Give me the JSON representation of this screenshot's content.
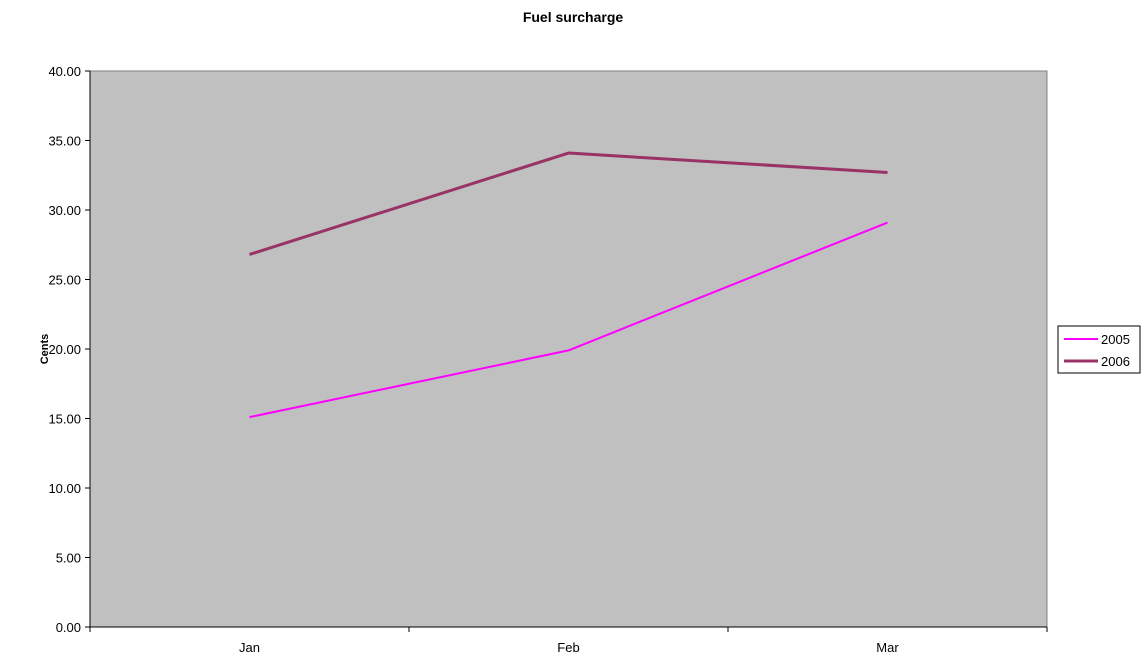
{
  "chart_data": {
    "type": "line",
    "title": "Fuel surcharge",
    "xlabel": "",
    "ylabel": "Cents",
    "categories": [
      "Jan",
      "Feb",
      "Mar"
    ],
    "ylim": [
      0,
      40
    ],
    "ytick_step": 5,
    "ytick_labels": [
      "0.00",
      "5.00",
      "10.00",
      "15.00",
      "20.00",
      "25.00",
      "30.00",
      "35.00",
      "40.00"
    ],
    "grid": false,
    "legend_position": "right",
    "plot_background": "#c0c0c0",
    "series": [
      {
        "name": "2005",
        "color": "#ff00ff",
        "values": [
          15.1,
          19.9,
          29.1
        ]
      },
      {
        "name": "2006",
        "color": "#993366",
        "values": [
          26.8,
          34.1,
          32.7
        ]
      }
    ]
  }
}
